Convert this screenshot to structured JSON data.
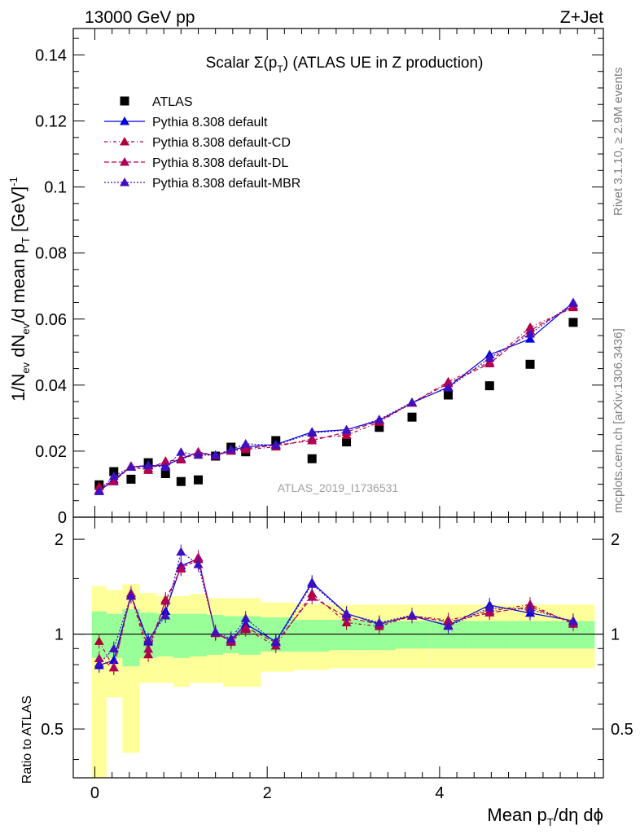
{
  "header": {
    "left": "13000 GeV pp",
    "right": "Z+Jet"
  },
  "side_text": {
    "rivet": "Rivet 3.1.10, ≥ 2.9M events",
    "mcplots": "mcplots.cern.ch [arXiv:1306.3436]"
  },
  "watermark": "ATLAS_2019_I1736531",
  "chart_data": {
    "type": "scatter",
    "title": "Scalar Σ(p_T) (ATLAS UE in Z production)",
    "title_parts": {
      "pre": "Scalar Σ(p",
      "sub": "T",
      "post": ") (ATLAS UE in Z production)"
    },
    "ylabel_main": {
      "a": "1/N",
      "a_sub": "ev",
      "b": " dN",
      "b_sub": "ev",
      "c": "/d mean p",
      "c_sub": "T",
      "d": " [GeV]",
      "d_sup": "-1"
    },
    "ylabel_ratio": "Ratio to ATLAS",
    "xlabel": {
      "a": "Mean p",
      "a_sub": "T",
      "b": "/dη dϕ"
    },
    "xlim": [
      -0.25,
      5.9
    ],
    "ylim_main": [
      0,
      0.148
    ],
    "ylim_ratio": [
      0.35,
      2.35
    ],
    "x_ticks": [
      "0",
      "2",
      "4"
    ],
    "y_ticks_main": [
      "0",
      "0.02",
      "0.04",
      "0.06",
      "0.08",
      "0.1",
      "0.12",
      "0.14"
    ],
    "y_ticks_ratio": [
      "0.5",
      "1",
      "2"
    ],
    "legend_position": "top-left",
    "x": [
      0.05,
      0.22,
      0.42,
      0.62,
      0.82,
      1.0,
      1.2,
      1.4,
      1.58,
      1.75,
      2.1,
      2.52,
      2.92,
      3.3,
      3.68,
      4.1,
      4.58,
      5.05,
      5.55
    ],
    "atlas": [
      0.0098,
      0.0138,
      0.0115,
      0.0165,
      0.0132,
      0.0108,
      0.0113,
      0.0185,
      0.0212,
      0.0198,
      0.0232,
      0.0177,
      0.0228,
      0.0272,
      0.0303,
      0.037,
      0.0398,
      0.0463,
      0.059
    ],
    "band_inner": [
      [
        0.84,
        1.18
      ],
      [
        0.84,
        1.16
      ],
      [
        0.79,
        1.2
      ],
      [
        0.84,
        1.17
      ],
      [
        0.85,
        1.16
      ],
      [
        0.84,
        1.16
      ],
      [
        0.85,
        1.16
      ],
      [
        0.86,
        1.15
      ],
      [
        0.87,
        1.14
      ],
      [
        0.86,
        1.14
      ],
      [
        0.88,
        1.13
      ],
      [
        0.88,
        1.11
      ],
      [
        0.89,
        1.11
      ],
      [
        0.89,
        1.1
      ],
      [
        0.9,
        1.1
      ],
      [
        0.9,
        1.1
      ],
      [
        0.9,
        1.1
      ],
      [
        0.9,
        1.1
      ],
      [
        0.9,
        1.1
      ]
    ],
    "band_outer": [
      [
        0.35,
        1.42
      ],
      [
        0.63,
        1.38
      ],
      [
        0.42,
        1.44
      ],
      [
        0.7,
        1.35
      ],
      [
        0.7,
        1.32
      ],
      [
        0.68,
        1.32
      ],
      [
        0.7,
        1.34
      ],
      [
        0.7,
        1.3
      ],
      [
        0.68,
        1.3
      ],
      [
        0.68,
        1.3
      ],
      [
        0.76,
        1.26
      ],
      [
        0.77,
        1.25
      ],
      [
        0.78,
        1.24
      ],
      [
        0.78,
        1.24
      ],
      [
        0.78,
        1.24
      ],
      [
        0.78,
        1.24
      ],
      [
        0.78,
        1.24
      ],
      [
        0.78,
        1.24
      ],
      [
        0.78,
        1.24
      ]
    ],
    "series": [
      {
        "name": "ATLAS",
        "color": "#000000",
        "marker": "square"
      },
      {
        "name": "Pythia 8.308 default",
        "color": "#0000e0",
        "dash": "",
        "marker": "triangle",
        "values": [
          0.0078,
          0.0114,
          0.0152,
          0.0156,
          0.0156,
          0.0178,
          0.0196,
          0.0186,
          0.0203,
          0.0213,
          0.022,
          0.0258,
          0.0265,
          0.0293,
          0.0346,
          0.0394,
          0.0492,
          0.054,
          0.065
        ]
      },
      {
        "name": "Pythia 8.308 default-CD",
        "color": "#b0003a",
        "dash": "4,3,1,3",
        "marker": "triangle",
        "values": [
          0.0093,
          0.0108,
          0.0153,
          0.0142,
          0.017,
          0.0174,
          0.0195,
          0.0187,
          0.02,
          0.0205,
          0.0213,
          0.0238,
          0.0248,
          0.0288,
          0.0346,
          0.041,
          0.047,
          0.0575,
          0.0635
        ]
      },
      {
        "name": "Pythia 8.308 default-DL",
        "color": "#b0005a",
        "dash": "6,3",
        "marker": "triangle",
        "values": [
          0.0082,
          0.0108,
          0.0155,
          0.0148,
          0.0168,
          0.0175,
          0.0198,
          0.0186,
          0.0202,
          0.0208,
          0.0218,
          0.0232,
          0.0258,
          0.0292,
          0.0346,
          0.0405,
          0.0465,
          0.0565,
          0.064
        ]
      },
      {
        "name": "Pythia 8.308 default-MBR",
        "color": "#4010c0",
        "dash": "2,2",
        "marker": "triangle",
        "values": [
          0.0079,
          0.0124,
          0.0152,
          0.0158,
          0.0151,
          0.0197,
          0.0188,
          0.0188,
          0.0205,
          0.0222,
          0.0218,
          0.0255,
          0.0264,
          0.0296,
          0.0348,
          0.0392,
          0.0482,
          0.0555,
          0.0648
        ]
      }
    ]
  }
}
